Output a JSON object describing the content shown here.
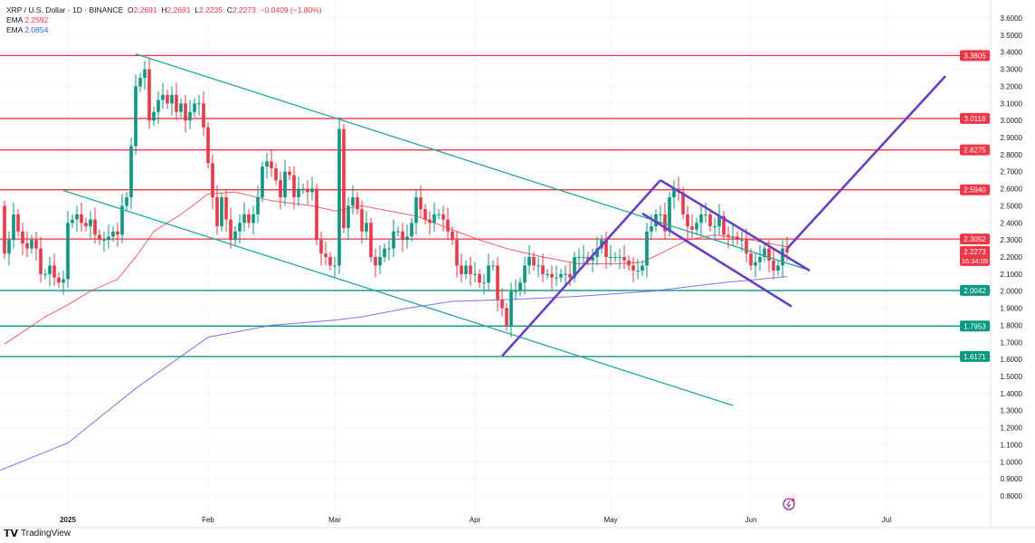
{
  "header": {
    "symbol": "XRP / U.S. Dollar · 1D · BINANCE",
    "o_label": "O",
    "o": "2.2691",
    "h_label": "H",
    "h": "2.2691",
    "l_label": "L",
    "l": "2.2235",
    "c_label": "C",
    "c": "2.2273",
    "change": "−0.0409 (−1.80%)",
    "ema1_label": "EMA",
    "ema1": "2.2592",
    "ema2_label": "EMA",
    "ema2": "2.0854"
  },
  "footer": {
    "brand": "TradingView"
  },
  "colors": {
    "up": "#089981",
    "down": "#f23645",
    "ema_fast": "#f23645",
    "ema_slow": "#5b4ff5",
    "resistance": "#f23645",
    "support": "#089981",
    "trend": "#26a69a",
    "pattern": "#6a3fc2"
  },
  "chart_data": {
    "type": "candlestick",
    "ylim": [
      0.8,
      3.6
    ],
    "y_ticks": [
      "3.6000",
      "3.5000",
      "3.4000",
      "3.3000",
      "3.2000",
      "3.1000",
      "3.0000",
      "2.9000",
      "2.8000",
      "2.7000",
      "2.6000",
      "2.5000",
      "2.4000",
      "2.3000",
      "2.2000",
      "2.1000",
      "2.0000",
      "1.9000",
      "1.8000",
      "1.7000",
      "1.6000",
      "1.5000",
      "1.4000",
      "1.3000",
      "1.2000",
      "1.1000",
      "1.0000",
      "0.9000",
      "0.8000"
    ],
    "x_ticks": [
      {
        "label": "2025",
        "date": "2025-01-01"
      },
      {
        "label": "Feb",
        "date": "2025-02-01"
      },
      {
        "label": "Mar",
        "date": "2025-03-01"
      },
      {
        "label": "Apr",
        "date": "2025-04-01"
      },
      {
        "label": "May",
        "date": "2025-05-01"
      },
      {
        "label": "Jun",
        "date": "2025-06-01"
      },
      {
        "label": "Jul",
        "date": "2025-07-01"
      }
    ],
    "start_date": "2024-12-18",
    "closes": [
      2.22,
      2.3,
      2.45,
      2.35,
      2.28,
      2.25,
      2.3,
      2.25,
      2.1,
      2.1,
      2.15,
      2.08,
      2.05,
      2.07,
      2.4,
      2.42,
      2.45,
      2.4,
      2.38,
      2.42,
      2.33,
      2.3,
      2.3,
      2.32,
      2.35,
      2.33,
      2.5,
      2.55,
      2.85,
      3.2,
      3.25,
      3.3,
      3.0,
      3.05,
      3.12,
      3.15,
      3.1,
      3.15,
      3.05,
      3.1,
      3.0,
      3.05,
      3.1,
      3.1,
      2.96,
      2.75,
      2.55,
      2.38,
      2.55,
      2.42,
      2.3,
      2.35,
      2.4,
      2.45,
      2.4,
      2.45,
      2.55,
      2.73,
      2.76,
      2.72,
      2.65,
      2.55,
      2.7,
      2.68,
      2.55,
      2.6,
      2.6,
      2.58,
      2.6,
      2.3,
      2.22,
      2.2,
      2.15,
      2.15,
      2.95,
      2.37,
      2.5,
      2.55,
      2.48,
      2.35,
      2.4,
      2.2,
      2.15,
      2.2,
      2.25,
      2.25,
      2.35,
      2.35,
      2.3,
      2.32,
      2.4,
      2.55,
      2.48,
      2.42,
      2.4,
      2.45,
      2.45,
      2.42,
      2.35,
      2.3,
      2.15,
      2.1,
      2.15,
      2.1,
      2.1,
      2.05,
      2.05,
      2.15,
      2.15,
      1.95,
      1.9,
      1.8,
      2.0,
      2.0,
      2.05,
      2.15,
      2.2,
      2.15,
      2.15,
      2.1,
      2.1,
      2.08,
      2.08,
      2.1,
      2.1,
      2.08,
      2.2,
      2.2,
      2.2,
      2.18,
      2.2,
      2.25,
      2.3,
      2.2,
      2.2,
      2.2,
      2.2,
      2.18,
      2.15,
      2.12,
      2.12,
      2.15,
      2.35,
      2.38,
      2.45,
      2.45,
      2.35,
      2.55,
      2.6,
      2.58,
      2.45,
      2.38,
      2.36,
      2.4,
      2.45,
      2.45,
      2.38,
      2.38,
      2.44,
      2.33,
      2.32,
      2.32,
      2.3,
      2.3,
      2.22,
      2.15,
      2.17,
      2.2,
      2.25,
      2.18,
      2.12,
      2.15,
      2.25,
      2.2273
    ],
    "ema_fast": [
      [
        "2024-12-18",
        1.69
      ],
      [
        "2024-12-27",
        1.85
      ],
      [
        "2025-01-01",
        1.92
      ],
      [
        "2025-01-06",
        2.0
      ],
      [
        "2025-01-12",
        2.07
      ],
      [
        "2025-01-16",
        2.2
      ],
      [
        "2025-01-20",
        2.35
      ],
      [
        "2025-01-26",
        2.45
      ],
      [
        "2025-02-01",
        2.57
      ],
      [
        "2025-02-07",
        2.58
      ],
      [
        "2025-02-15",
        2.53
      ],
      [
        "2025-02-24",
        2.5
      ],
      [
        "2025-03-01",
        2.47
      ],
      [
        "2025-03-07",
        2.5
      ],
      [
        "2025-03-13",
        2.47
      ],
      [
        "2025-03-19",
        2.44
      ],
      [
        "2025-03-27",
        2.36
      ],
      [
        "2025-04-02",
        2.3
      ],
      [
        "2025-04-08",
        2.25
      ],
      [
        "2025-04-16",
        2.2
      ],
      [
        "2025-04-24",
        2.16
      ],
      [
        "2025-05-02",
        2.16
      ],
      [
        "2025-05-08",
        2.17
      ],
      [
        "2025-05-12",
        2.22
      ],
      [
        "2025-05-18",
        2.3
      ],
      [
        "2025-05-24",
        2.33
      ],
      [
        "2025-06-01",
        2.3
      ],
      [
        "2025-06-09",
        2.2592
      ]
    ],
    "ema_slow": [
      [
        "2024-12-17",
        0.95
      ],
      [
        "2025-01-01",
        1.11
      ],
      [
        "2025-01-16",
        1.43
      ],
      [
        "2025-02-01",
        1.73
      ],
      [
        "2025-02-15",
        1.8
      ],
      [
        "2025-03-01",
        1.83
      ],
      [
        "2025-03-07",
        1.85
      ],
      [
        "2025-03-17",
        1.9
      ],
      [
        "2025-03-27",
        1.94
      ],
      [
        "2025-04-08",
        1.95
      ],
      [
        "2025-04-24",
        1.97
      ],
      [
        "2025-05-10",
        2.0
      ],
      [
        "2025-05-26",
        2.05
      ],
      [
        "2025-06-09",
        2.0854
      ]
    ],
    "levels": [
      {
        "price": 3.3805,
        "label": "3.3805",
        "kind": "resistance"
      },
      {
        "price": 3.0118,
        "label": "3.0118",
        "kind": "resistance"
      },
      {
        "price": 2.8275,
        "label": "2.8275",
        "kind": "resistance"
      },
      {
        "price": 2.594,
        "label": "2.5940",
        "kind": "resistance"
      },
      {
        "price": 2.3052,
        "label": "2.3052",
        "kind": "resistance"
      },
      {
        "price": 2.0042,
        "label": "2.0042",
        "kind": "support"
      },
      {
        "price": 1.7953,
        "label": "1.7953",
        "kind": "support"
      },
      {
        "price": 1.6171,
        "label": "1.6171",
        "kind": "support"
      }
    ],
    "current_price": {
      "price": 2.2273,
      "label": "2.2273",
      "countdown": "16:34:09"
    },
    "trendlines": [
      {
        "kind": "trend",
        "from": [
          "2025-01-16",
          3.39
        ],
        "to": [
          "2025-06-13",
          2.13
        ]
      },
      {
        "kind": "trend",
        "from": [
          "2024-12-31",
          2.59
        ],
        "to": [
          "2025-05-28",
          1.33
        ]
      },
      {
        "kind": "pattern",
        "from": [
          "2025-04-07",
          1.62
        ],
        "to": [
          "2025-05-12",
          2.65
        ]
      },
      {
        "kind": "pattern",
        "from": [
          "2025-05-12",
          2.65
        ],
        "to": [
          "2025-06-14",
          2.12
        ]
      },
      {
        "kind": "pattern",
        "from": [
          "2025-05-08",
          2.455
        ],
        "to": [
          "2025-06-10",
          1.91
        ]
      },
      {
        "kind": "pattern",
        "from": [
          "2025-06-09",
          2.25
        ],
        "to": [
          "2025-07-14",
          3.26
        ]
      }
    ]
  }
}
